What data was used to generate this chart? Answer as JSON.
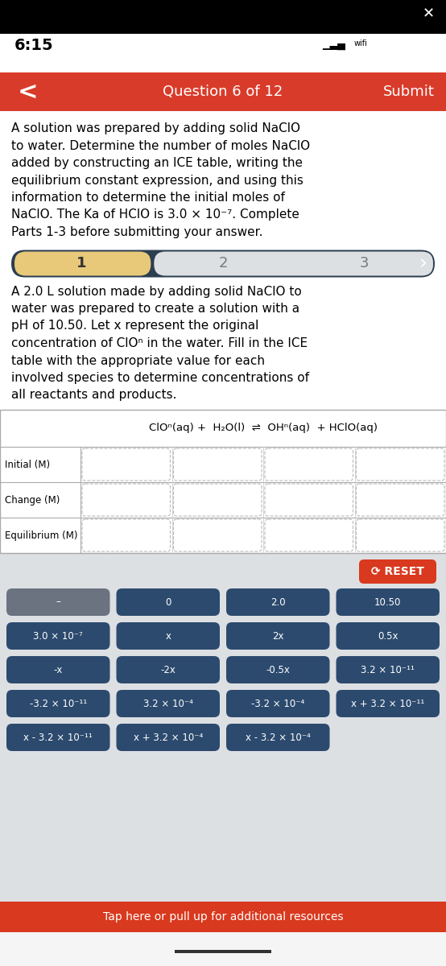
{
  "status_time": "6:15",
  "nav_color": "#d93b2a",
  "nav_text": "Question 6 of 12",
  "nav_submit": "Submit",
  "intro_text_lines": [
    "A solution was prepared by adding solid NaClO",
    "to water. Determine the number of moles NaClO",
    "added by constructing an ICE table, writing the",
    "equilibrium constant expression, and using this",
    "information to determine the initial moles of",
    "NaClO. The Ka of HClO is 3.0 × 10⁻⁷. Complete",
    "Parts 1-3 before submitting your answer."
  ],
  "step_bar_dark": "#2c3e50",
  "step_active_color": "#e8c97a",
  "step_bg_light": "#dde0e3",
  "sub_text_lines": [
    "A 2.0 L solution made by adding solid NaClO to",
    "water was prepared to create a solution with a",
    "pH of 10.50. Let x represent the original",
    "concentration of ClOⁿ in the water. Fill in the ICE",
    "table with the appropriate value for each",
    "involved species to determine concentrations of",
    "all reactants and products."
  ],
  "reaction": "ClOⁿ(aq) +  H₂O(l)  ⇌  OHⁿ(aq)  + HClO(aq)",
  "row_labels": [
    "Initial (M)",
    "Change (M)",
    "Equilibrium (M)"
  ],
  "answer_bg": "#dde0e3",
  "reset_color": "#d9391e",
  "btn_dark": "#2c4a6e",
  "btn_gray": "#6b7280",
  "button_rows": [
    [
      "–",
      "0",
      "2.0",
      "10.50"
    ],
    [
      "3.0 × 10⁻⁷",
      "x",
      "2x",
      "0.5x"
    ],
    [
      "-x",
      "-2x",
      "-0.5x",
      "3.2 × 10⁻¹¹"
    ],
    [
      "-3.2 × 10⁻¹¹",
      "3.2 × 10⁻⁴",
      "-3.2 × 10⁻⁴",
      "x + 3.2 × 10⁻¹¹"
    ],
    [
      "x - 3.2 × 10⁻¹¹",
      "x + 3.2 × 10⁻⁴",
      "x - 3.2 × 10⁻⁴",
      ""
    ]
  ],
  "btn_is_gray": [
    [
      true,
      false,
      false,
      false
    ],
    [
      false,
      false,
      false,
      false
    ],
    [
      false,
      false,
      false,
      false
    ],
    [
      false,
      false,
      false,
      false
    ],
    [
      false,
      false,
      false,
      false
    ]
  ],
  "bottom_bar_color": "#d9391e",
  "bottom_bar_text": "Tap here or pull up for additional resources"
}
